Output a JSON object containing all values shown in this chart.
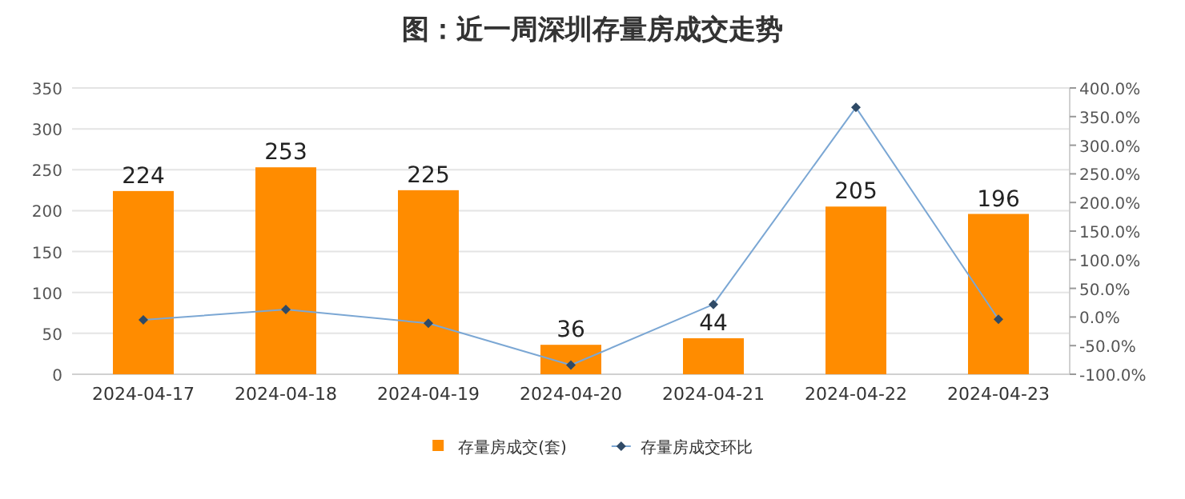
{
  "chart_data": {
    "type": "bar",
    "title": "图：近一周深圳存量房成交走势",
    "categories": [
      "2024-04-17",
      "2024-04-18",
      "2024-04-19",
      "2024-04-20",
      "2024-04-21",
      "2024-04-22",
      "2024-04-23"
    ],
    "series": [
      {
        "name": "存量房成交(套)",
        "color": "#ff8c00",
        "data_labels": true,
        "values": [
          224,
          253,
          225,
          36,
          44,
          205,
          196
        ]
      },
      {
        "name": "存量房成交环比",
        "type": "line",
        "axis": "y2",
        "color": "#7ba7d4",
        "marker": "diamond",
        "values": [
          -5,
          13,
          -11,
          -84,
          22,
          366,
          -4
        ]
      }
    ],
    "ylim": [
      0,
      350
    ],
    "yticks": [
      0,
      50,
      100,
      150,
      200,
      250,
      300,
      350
    ],
    "y2lim": [
      -100,
      400
    ],
    "y2ticks": [
      {
        "value": -100,
        "label": "-100.0%"
      },
      {
        "value": -50,
        "label": "-50.0%"
      },
      {
        "value": 0,
        "label": "0.0%"
      },
      {
        "value": 50,
        "label": "50.0%"
      },
      {
        "value": 100,
        "label": "100.0%"
      },
      {
        "value": 150,
        "label": "150.0%"
      },
      {
        "value": 200,
        "label": "200.0%"
      },
      {
        "value": 250,
        "label": "250.0%"
      },
      {
        "value": 300,
        "label": "300.0%"
      },
      {
        "value": 350,
        "label": "350.0%"
      },
      {
        "value": 400,
        "label": "400.0%"
      }
    ],
    "grid": "y",
    "legend": "bottom"
  }
}
